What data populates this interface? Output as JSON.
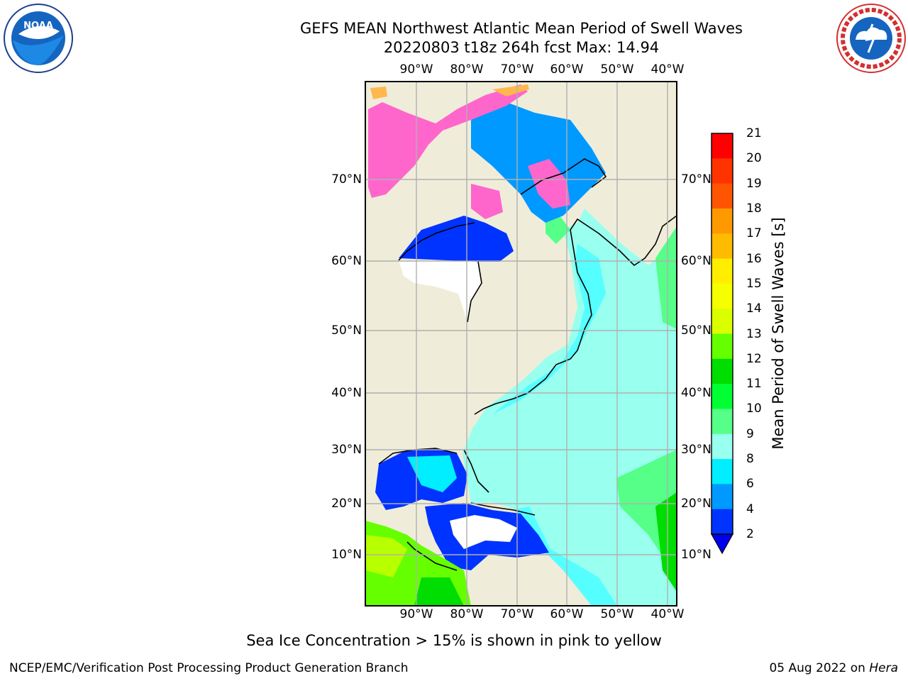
{
  "title": {
    "line1": "GEFS MEAN Northwest Atlantic Mean Period of Swell Waves",
    "line2": "20220803 t18z 264h fcst   Max: 14.94"
  },
  "map": {
    "lon_labels": [
      "90°W",
      "80°W",
      "70°W",
      "60°W",
      "50°W",
      "40°W"
    ],
    "lat_labels": [
      "70°N",
      "60°N",
      "50°N",
      "40°N",
      "30°N",
      "20°N",
      "10°N"
    ],
    "colors": {
      "land": "#efedd9",
      "coast": "#000000",
      "grid": "#b0b0b0",
      "sea_ice_pink": "#ff66cc",
      "sea_ice_orange": "#ffb84d"
    }
  },
  "colorbar": {
    "label": "Mean Period of Swell Waves [s]",
    "ticks": [
      "21",
      "20",
      "19",
      "18",
      "17",
      "16",
      "15",
      "14",
      "13",
      "12",
      "11",
      "10",
      "9",
      "8",
      "6",
      "4",
      "2"
    ],
    "colors_top_to_bottom": [
      "#ff0000",
      "#ff3300",
      "#ff5500",
      "#ff7700",
      "#ff9900",
      "#ffbb00",
      "#ffee00",
      "#f5ff00",
      "#dcff00",
      "#b8ff00",
      "#66ff00",
      "#00dd00",
      "#00ff33",
      "#55ff88",
      "#99ffee",
      "#55ffff",
      "#00eeff",
      "#0099ff",
      "#0033ff"
    ]
  },
  "footer": {
    "note": "Sea Ice Concentration > 15% is shown in pink to yellow",
    "credit": "NCEP/EMC/Verification Post Processing Product Generation Branch",
    "date_text": "05 Aug 2022 on",
    "machine": "Hera"
  },
  "logos": {
    "left": "noaa-logo",
    "right": "national-weather-service-logo",
    "nws_ring_text": "NATIONAL WEATHER SERVICE"
  }
}
